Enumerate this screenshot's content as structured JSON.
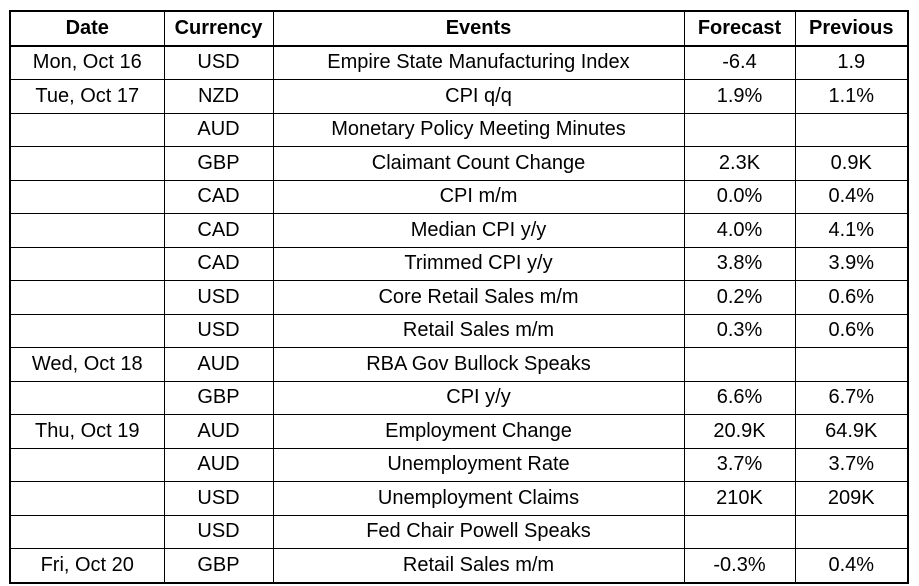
{
  "headers": {
    "date": "Date",
    "currency": "Currency",
    "events": "Events",
    "forecast": "Forecast",
    "previous": "Previous"
  },
  "rows": [
    {
      "date": "Mon, Oct 16",
      "currency": "USD",
      "event": "Empire State Manufacturing Index",
      "forecast": "-6.4",
      "previous": "1.9"
    },
    {
      "date": "Tue, Oct 17",
      "currency": "NZD",
      "event": "CPI q/q",
      "forecast": "1.9%",
      "previous": "1.1%"
    },
    {
      "date": "",
      "currency": "AUD",
      "event": "Monetary Policy Meeting Minutes",
      "forecast": "",
      "previous": ""
    },
    {
      "date": "",
      "currency": "GBP",
      "event": "Claimant Count Change",
      "forecast": "2.3K",
      "previous": "0.9K"
    },
    {
      "date": "",
      "currency": "CAD",
      "event": "CPI m/m",
      "forecast": "0.0%",
      "previous": "0.4%"
    },
    {
      "date": "",
      "currency": "CAD",
      "event": "Median CPI y/y",
      "forecast": "4.0%",
      "previous": "4.1%"
    },
    {
      "date": "",
      "currency": "CAD",
      "event": "Trimmed CPI y/y",
      "forecast": "3.8%",
      "previous": "3.9%"
    },
    {
      "date": "",
      "currency": "USD",
      "event": "Core Retail Sales m/m",
      "forecast": "0.2%",
      "previous": "0.6%"
    },
    {
      "date": "",
      "currency": "USD",
      "event": "Retail Sales m/m",
      "forecast": "0.3%",
      "previous": "0.6%"
    },
    {
      "date": "Wed, Oct 18",
      "currency": "AUD",
      "event": "RBA Gov Bullock Speaks",
      "forecast": "",
      "previous": ""
    },
    {
      "date": "",
      "currency": "GBP",
      "event": "CPI y/y",
      "forecast": "6.6%",
      "previous": "6.7%"
    },
    {
      "date": "Thu, Oct 19",
      "currency": "AUD",
      "event": "Employment Change",
      "forecast": "20.9K",
      "previous": "64.9K"
    },
    {
      "date": "",
      "currency": "AUD",
      "event": "Unemployment Rate",
      "forecast": "3.7%",
      "previous": "3.7%"
    },
    {
      "date": "",
      "currency": "USD",
      "event": "Unemployment Claims",
      "forecast": "210K",
      "previous": "209K"
    },
    {
      "date": "",
      "currency": "USD",
      "event": "Fed Chair Powell Speaks",
      "forecast": "",
      "previous": ""
    },
    {
      "date": "Fri, Oct 20",
      "currency": "GBP",
      "event": "Retail Sales m/m",
      "forecast": "-0.3%",
      "previous": "0.4%"
    }
  ]
}
